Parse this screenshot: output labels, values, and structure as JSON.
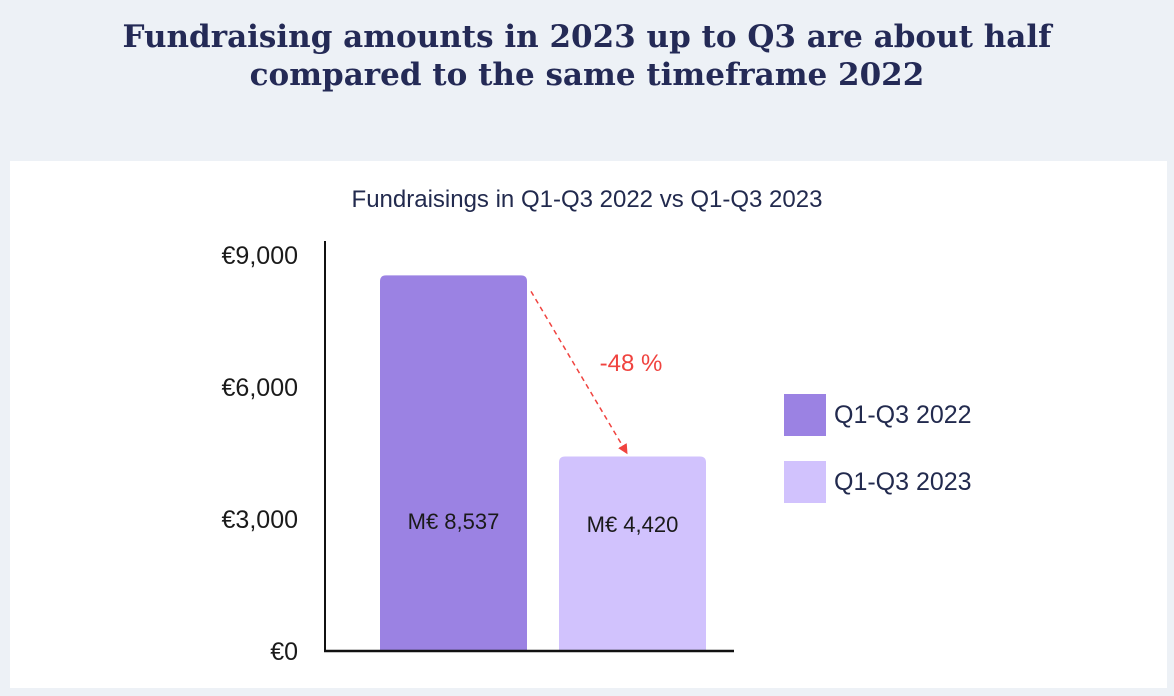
{
  "headline": {
    "line1": "Fundraising amounts in 2023 up to Q3 are about half",
    "line2": "compared to the same timeframe 2022"
  },
  "chart_data": {
    "type": "bar",
    "title": "Fundraisings in Q1-Q3 2022 vs Q1-Q3 2023",
    "xlabel": "",
    "ylabel": "",
    "categories": [
      "Q1-Q3 2022",
      "Q1-Q3 2023"
    ],
    "values": [
      8537,
      4420
    ],
    "data_labels": [
      "M€ 8,537",
      "M€ 4,420"
    ],
    "colors": [
      "#9b82e3",
      "#d1c2fd"
    ],
    "ylim": [
      0,
      9000
    ],
    "yticks": [
      0,
      3000,
      6000,
      9000
    ],
    "ytick_labels": [
      "€0",
      "€3,000",
      "€6,000",
      "€9,000"
    ],
    "grid": false,
    "legend_position": "right",
    "annotation": {
      "text": "-48 %",
      "color": "#f0433f",
      "from": "Q1-Q3 2022",
      "to": "Q1-Q3 2023"
    }
  }
}
